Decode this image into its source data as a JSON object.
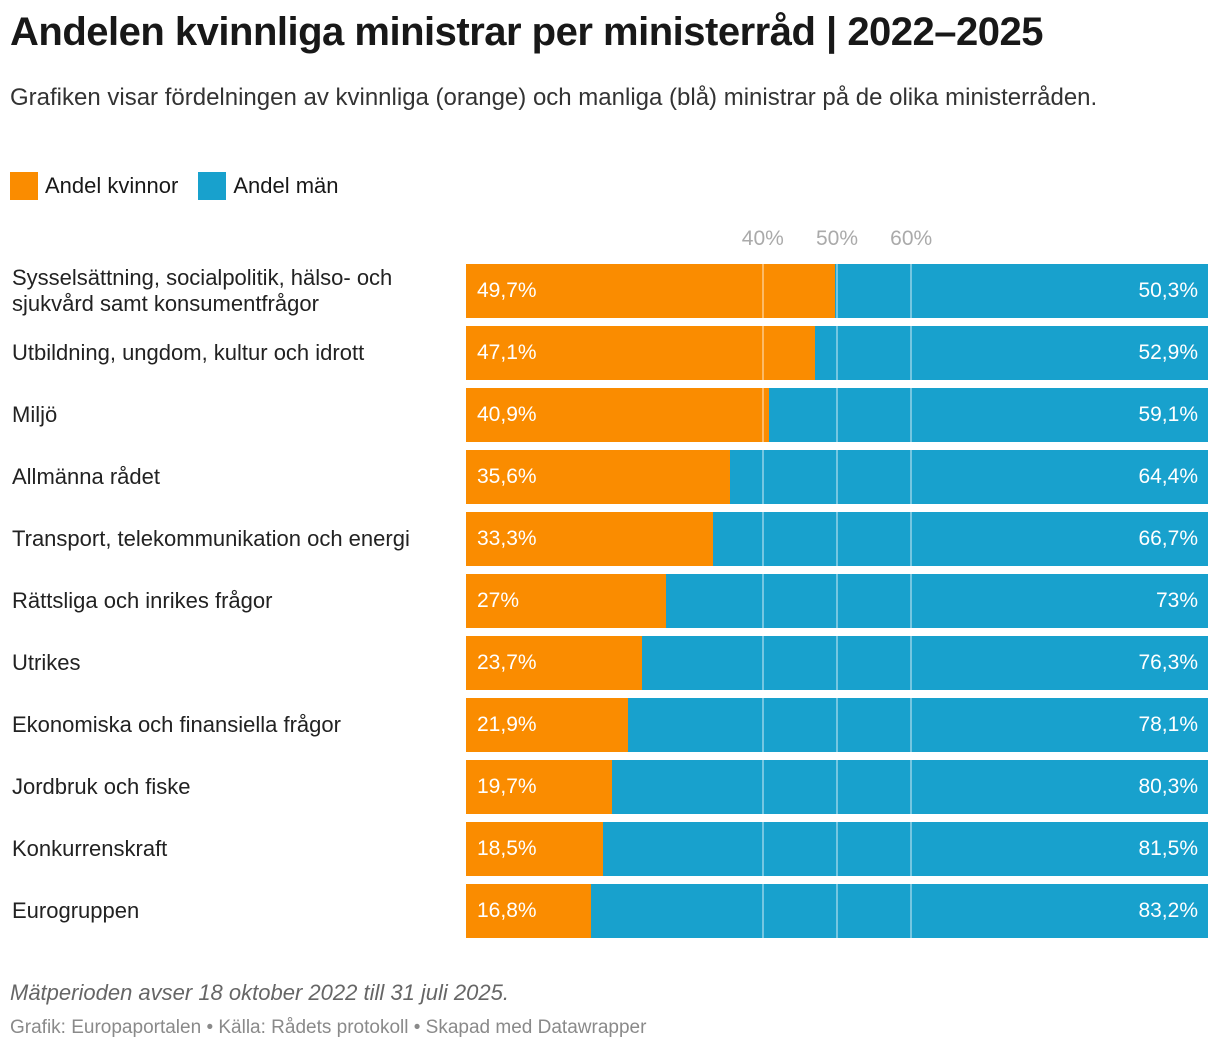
{
  "title": "Andelen kvinnliga ministrar per ministerråd | 2022–2025",
  "subtitle": "Grafiken visar fördelningen av kvinnliga (orange) och manliga (blå) ministrar på de olika ministerråden.",
  "footer": {
    "note": "Mätperioden avser 18 oktober 2022 till 31 juli 2025.",
    "source": "Grafik: Europaportalen • Källa: Rådets protokoll • Skapad med Datawrapper"
  },
  "chart_data": {
    "type": "bar",
    "orientation": "horizontal",
    "stacked": true,
    "xlim": [
      0,
      100
    ],
    "ticks": [
      "40%",
      "50%",
      "60%"
    ],
    "tick_values": [
      40,
      50,
      60
    ],
    "legend_position": "top-left",
    "categories": [
      "Sysselsättning, socialpolitik, hälso- och sjukvård samt konsumentfrågor",
      "Utbildning, ungdom, kultur och idrott",
      "Miljö",
      "Allmänna rådet",
      "Transport, telekommunikation och energi",
      "Rättsliga och inrikes frågor",
      "Utrikes",
      "Ekonomiska och finansiella frågor",
      "Jordbruk och fiske",
      "Konkurrenskraft",
      "Eurogruppen"
    ],
    "series": [
      {
        "name": "Andel kvinnor",
        "color": "#fa8c00",
        "values": [
          49.7,
          47.1,
          40.9,
          35.6,
          33.3,
          27,
          23.7,
          21.9,
          19.7,
          18.5,
          16.8
        ],
        "labels": [
          "49,7%",
          "47,1%",
          "40,9%",
          "35,6%",
          "33,3%",
          "27%",
          "23,7%",
          "21,9%",
          "19,7%",
          "18,5%",
          "16,8%"
        ]
      },
      {
        "name": "Andel män",
        "color": "#18a1cd",
        "values": [
          50.3,
          52.9,
          59.1,
          64.4,
          66.7,
          73,
          76.3,
          78.1,
          80.3,
          81.5,
          83.2
        ],
        "labels": [
          "50,3%",
          "52,9%",
          "59,1%",
          "64,4%",
          "66,7%",
          "73%",
          "76,3%",
          "78,1%",
          "80,3%",
          "81,5%",
          "83,2%"
        ]
      }
    ]
  }
}
